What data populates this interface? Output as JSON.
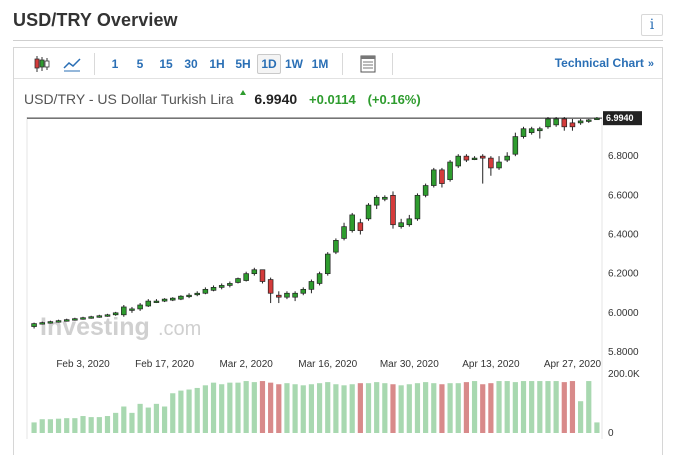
{
  "header": {
    "title": "USD/TRY Overview",
    "info_icon": "info-icon"
  },
  "toolbar": {
    "icons": [
      "candlestick-icon",
      "line-chart-icon",
      "chart-settings-icon"
    ],
    "timeframes": [
      "1",
      "5",
      "15",
      "30",
      "1H",
      "5H",
      "1D",
      "1W",
      "1M"
    ],
    "active_timeframe": "1D",
    "technical_chart_label": "Technical Chart",
    "technical_chart_chevron": "»"
  },
  "quote": {
    "pair": "USD/TRY - US Dollar Turkish Lira",
    "price": "6.9940",
    "change": "+0.0114",
    "change_pct": "(+0.16%)"
  },
  "watermark": {
    "brand": "Investing",
    "suffix": ".com"
  },
  "colors": {
    "up": "#2e9c2e",
    "down": "#d43b3b",
    "vol_up": "#a8d8b0",
    "vol_down": "#d88a8a",
    "accent": "#2a6fb5"
  },
  "chart_data": {
    "type": "candlestick",
    "price_axis": {
      "min": 5.8,
      "max": 7.0,
      "ticks": [
        "6.0000",
        "6.2000",
        "6.4000",
        "6.6000",
        "6.8000"
      ],
      "extra_ticks": [
        "5.8000"
      ],
      "last_price_label": "6.9940",
      "last_price": 6.994
    },
    "date_ticks": [
      "Feb 3, 2020",
      "Feb 17, 2020",
      "Mar 2, 2020",
      "Mar 16, 2020",
      "Mar 30, 2020",
      "Apr 13, 2020",
      "Apr 27, 2020"
    ],
    "date_tick_index": [
      6,
      16,
      26,
      36,
      46,
      56,
      66
    ],
    "volume_axis": {
      "max_label": "200.0K",
      "min_label": "0",
      "max": 200
    },
    "candles": [
      [
        5.93,
        5.945,
        5.92,
        5.95
      ],
      [
        5.945,
        5.95,
        5.94,
        5.955
      ],
      [
        5.95,
        5.955,
        5.945,
        5.96
      ],
      [
        5.955,
        5.96,
        5.95,
        5.965
      ],
      [
        5.96,
        5.965,
        5.955,
        5.97
      ],
      [
        5.965,
        5.97,
        5.96,
        5.975
      ],
      [
        5.97,
        5.975,
        5.965,
        5.98
      ],
      [
        5.975,
        5.98,
        5.97,
        5.985
      ],
      [
        5.98,
        5.985,
        5.975,
        5.99
      ],
      [
        5.985,
        5.99,
        5.98,
        5.995
      ],
      [
        5.99,
        6.0,
        5.985,
        6.005
      ],
      [
        5.99,
        6.03,
        5.98,
        6.04
      ],
      [
        6.02,
        6.02,
        6.0,
        6.03
      ],
      [
        6.02,
        6.04,
        6.01,
        6.05
      ],
      [
        6.035,
        6.06,
        6.03,
        6.07
      ],
      [
        6.055,
        6.06,
        6.05,
        6.07
      ],
      [
        6.06,
        6.07,
        6.055,
        6.075
      ],
      [
        6.065,
        6.075,
        6.06,
        6.08
      ],
      [
        6.07,
        6.085,
        6.065,
        6.09
      ],
      [
        6.085,
        6.09,
        6.075,
        6.1
      ],
      [
        6.095,
        6.1,
        6.085,
        6.11
      ],
      [
        6.1,
        6.12,
        6.095,
        6.13
      ],
      [
        6.115,
        6.13,
        6.11,
        6.14
      ],
      [
        6.13,
        6.14,
        6.12,
        6.15
      ],
      [
        6.14,
        6.15,
        6.13,
        6.16
      ],
      [
        6.155,
        6.175,
        6.15,
        6.18
      ],
      [
        6.165,
        6.2,
        6.16,
        6.21
      ],
      [
        6.2,
        6.22,
        6.19,
        6.23
      ],
      [
        6.22,
        6.16,
        6.15,
        6.22
      ],
      [
        6.17,
        6.1,
        6.05,
        6.18
      ],
      [
        6.09,
        6.08,
        6.05,
        6.11
      ],
      [
        6.08,
        6.1,
        6.07,
        6.11
      ],
      [
        6.08,
        6.1,
        6.06,
        6.11
      ],
      [
        6.1,
        6.12,
        6.09,
        6.13
      ],
      [
        6.12,
        6.16,
        6.1,
        6.17
      ],
      [
        6.15,
        6.2,
        6.14,
        6.21
      ],
      [
        6.2,
        6.3,
        6.19,
        6.31
      ],
      [
        6.31,
        6.37,
        6.3,
        6.38
      ],
      [
        6.38,
        6.44,
        6.37,
        6.46
      ],
      [
        6.42,
        6.5,
        6.41,
        6.51
      ],
      [
        6.46,
        6.42,
        6.4,
        6.48
      ],
      [
        6.48,
        6.55,
        6.47,
        6.56
      ],
      [
        6.55,
        6.59,
        6.53,
        6.6
      ],
      [
        6.58,
        6.59,
        6.57,
        6.6
      ],
      [
        6.6,
        6.45,
        6.43,
        6.62
      ],
      [
        6.44,
        6.46,
        6.43,
        6.48
      ],
      [
        6.45,
        6.48,
        6.44,
        6.5
      ],
      [
        6.48,
        6.6,
        6.47,
        6.61
      ],
      [
        6.6,
        6.65,
        6.59,
        6.66
      ],
      [
        6.65,
        6.73,
        6.64,
        6.74
      ],
      [
        6.73,
        6.66,
        6.64,
        6.74
      ],
      [
        6.68,
        6.77,
        6.67,
        6.78
      ],
      [
        6.75,
        6.8,
        6.74,
        6.81
      ],
      [
        6.8,
        6.78,
        6.77,
        6.81
      ],
      [
        6.79,
        6.79,
        6.78,
        6.8
      ],
      [
        6.8,
        6.79,
        6.66,
        6.81
      ],
      [
        6.79,
        6.74,
        6.7,
        6.8
      ],
      [
        6.74,
        6.77,
        6.73,
        6.8
      ],
      [
        6.78,
        6.8,
        6.77,
        6.82
      ],
      [
        6.81,
        6.9,
        6.8,
        6.92
      ],
      [
        6.9,
        6.94,
        6.89,
        6.95
      ],
      [
        6.92,
        6.94,
        6.91,
        6.95
      ],
      [
        6.93,
        6.94,
        6.89,
        6.95
      ],
      [
        6.95,
        6.99,
        6.94,
        7.0
      ],
      [
        6.96,
        6.99,
        6.95,
        7.0
      ],
      [
        6.99,
        6.95,
        6.93,
        7.0
      ],
      [
        6.97,
        6.95,
        6.93,
        6.99
      ],
      [
        6.97,
        6.98,
        6.96,
        6.99
      ],
      [
        6.98,
        6.985,
        6.97,
        6.99
      ],
      [
        6.99,
        6.994,
        6.985,
        7.0
      ]
    ],
    "volumes": [
      20,
      26,
      26,
      27,
      28,
      28,
      32,
      30,
      30,
      32,
      38,
      50,
      38,
      55,
      48,
      55,
      50,
      75,
      80,
      82,
      85,
      90,
      95,
      92,
      95,
      95,
      98,
      96,
      98,
      95,
      92,
      94,
      92,
      90,
      92,
      94,
      96,
      92,
      90,
      92,
      94,
      94,
      96,
      94,
      92,
      90,
      92,
      94,
      96,
      94,
      92,
      94,
      94,
      96,
      98,
      92,
      94,
      98,
      98,
      96,
      98,
      98,
      98,
      98,
      98,
      96,
      98,
      60,
      98,
      20
    ]
  }
}
